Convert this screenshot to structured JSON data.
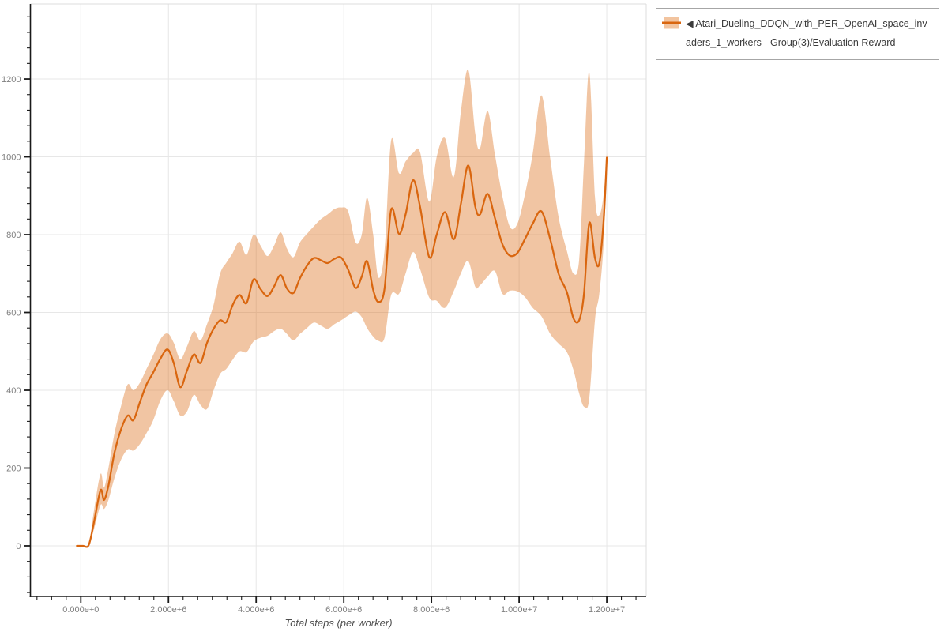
{
  "page": {
    "background": "#ffffff"
  },
  "legend": {
    "series_label": "◀ Atari_Dueling_DDQN_with_PER_OpenAI_space_invaders_1_workers - Group(3)/Evaluation Reward",
    "swatch_band_color": "#f2c49f",
    "swatch_line_color": "#d9660f"
  },
  "chart_data": {
    "type": "line",
    "title": "",
    "xlabel": "Total steps (per worker)",
    "ylabel": "",
    "legend_position": "top-right-outside",
    "grid": true,
    "xlim_steps": [
      -1150000,
      12900000
    ],
    "ylim": [
      -130,
      1393
    ],
    "x_major_tick_steps": [
      0,
      2000000,
      4000000,
      6000000,
      8000000,
      10000000,
      12000000
    ],
    "x_tick_labels": [
      "0.000e+0",
      "2.000e+6",
      "4.000e+6",
      "6.000e+6",
      "8.000e+6",
      "1.000e+7",
      "1.200e+7"
    ],
    "y_major_ticks": [
      0,
      200,
      400,
      600,
      800,
      1000,
      1200
    ],
    "y_tick_labels": [
      "0",
      "200",
      "400",
      "600",
      "800",
      "1000",
      "1200"
    ],
    "colors": {
      "line": "#d9660f",
      "band_fill": "rgba(217,102,13,0.38)",
      "grid": "#e7e7e7",
      "plot_border": "#dcdcdc",
      "spine": "#1a1a1a",
      "tick_label": "#808080"
    },
    "series": [
      {
        "name": "Atari_Dueling_DDQN_with_PER_OpenAI_space_invaders_1_workers - Group(3)/Evaluation Reward",
        "x_steps_millions": [
          -0.09,
          0.05,
          0.18,
          0.3,
          0.45,
          0.53,
          0.63,
          0.77,
          0.92,
          1.07,
          1.2,
          1.35,
          1.5,
          1.65,
          1.82,
          1.98,
          2.12,
          2.27,
          2.42,
          2.58,
          2.73,
          2.88,
          3.03,
          3.18,
          3.32,
          3.46,
          3.62,
          3.78,
          3.94,
          4.1,
          4.26,
          4.41,
          4.56,
          4.7,
          4.85,
          5.0,
          5.16,
          5.32,
          5.48,
          5.63,
          5.79,
          5.94,
          6.1,
          6.27,
          6.41,
          6.53,
          6.67,
          6.79,
          6.93,
          7.08,
          7.26,
          7.41,
          7.58,
          7.74,
          7.95,
          8.12,
          8.31,
          8.51,
          8.67,
          8.84,
          9.0,
          9.11,
          9.28,
          9.45,
          9.62,
          9.79,
          9.96,
          10.13,
          10.31,
          10.51,
          10.71,
          10.9,
          11.09,
          11.24,
          11.37,
          11.48,
          11.6,
          11.73,
          11.83,
          11.93,
          12.0
        ],
        "mean": [
          0,
          0,
          2,
          60,
          143,
          118,
          155,
          240,
          300,
          335,
          323,
          370,
          415,
          445,
          482,
          505,
          470,
          408,
          450,
          492,
          470,
          522,
          558,
          580,
          575,
          618,
          645,
          624,
          685,
          660,
          642,
          667,
          696,
          662,
          650,
          688,
          720,
          740,
          734,
          727,
          738,
          741,
          710,
          663,
          692,
          732,
          658,
          627,
          662,
          864,
          802,
          852,
          940,
          872,
          742,
          800,
          858,
          788,
          878,
          978,
          872,
          852,
          905,
          842,
          775,
          746,
          753,
          788,
          828,
          860,
          788,
          700,
          652,
          585,
          580,
          648,
          830,
          740,
          726,
          840,
          998
        ],
        "lower": [
          0,
          0,
          2,
          42,
          105,
          95,
          118,
          175,
          222,
          248,
          245,
          262,
          290,
          322,
          375,
          400,
          372,
          335,
          345,
          388,
          362,
          352,
          400,
          442,
          455,
          478,
          500,
          498,
          525,
          535,
          540,
          552,
          558,
          545,
          528,
          545,
          560,
          574,
          566,
          558,
          570,
          580,
          592,
          602,
          588,
          560,
          538,
          527,
          535,
          645,
          648,
          700,
          755,
          712,
          638,
          630,
          612,
          655,
          700,
          732,
          666,
          670,
          692,
          706,
          648,
          656,
          654,
          640,
          612,
          590,
          545,
          520,
          498,
          452,
          392,
          358,
          378,
          580,
          648,
          780,
          985
        ],
        "upper": [
          0,
          0,
          2,
          90,
          185,
          150,
          200,
          290,
          360,
          415,
          400,
          420,
          455,
          490,
          532,
          546,
          522,
          480,
          512,
          552,
          528,
          570,
          620,
          700,
          728,
          752,
          782,
          748,
          800,
          772,
          745,
          772,
          806,
          765,
          742,
          780,
          802,
          822,
          840,
          852,
          866,
          870,
          860,
          780,
          800,
          895,
          800,
          690,
          760,
          1042,
          958,
          988,
          1010,
          1012,
          885,
          1000,
          1048,
          948,
          1115,
          1224,
          1060,
          1022,
          1118,
          1005,
          898,
          820,
          828,
          902,
          1008,
          1158,
          996,
          846,
          758,
          700,
          735,
          985,
          1218,
          898,
          850,
          905,
          1010
        ]
      }
    ]
  }
}
